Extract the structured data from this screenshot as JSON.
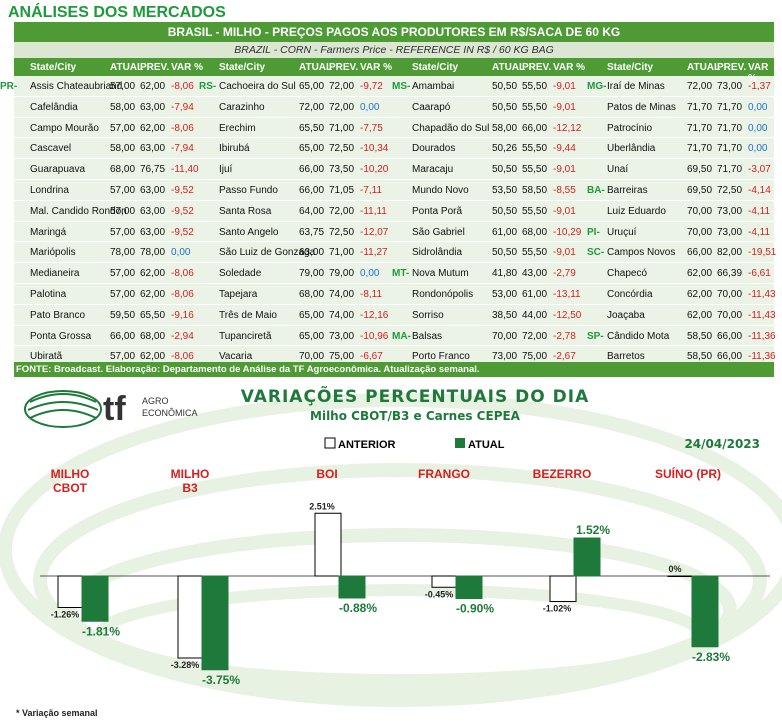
{
  "page_title": "ANÁLISES DOS MERCADOS",
  "table": {
    "title": "BRASIL - MILHO - PREÇOS PAGOS AOS PRODUTORES EM R$/SACA DE 60 KG",
    "subtitle": "BRAZIL - CORN - Farmers Price - REFERENCE IN R$ / 60 KG BAG",
    "headers": [
      "State/City",
      "ATUAL",
      "PREV.",
      "VAR %"
    ],
    "columns": [
      [
        {
          "state": "PR-",
          "city": "Assis Chateaubriand",
          "atual": "57,00",
          "prev": "62,00",
          "var": "-8,06"
        },
        {
          "state": "",
          "city": "Cafelândia",
          "atual": "58,00",
          "prev": "63,00",
          "var": "-7,94"
        },
        {
          "state": "",
          "city": "Campo Mourão",
          "atual": "57,00",
          "prev": "62,00",
          "var": "-8,06"
        },
        {
          "state": "",
          "city": "Cascavel",
          "atual": "58,00",
          "prev": "63,00",
          "var": "-7,94"
        },
        {
          "state": "",
          "city": "Guarapuava",
          "atual": "68,00",
          "prev": "76,75",
          "var": "-11,40"
        },
        {
          "state": "",
          "city": "Londrina",
          "atual": "57,00",
          "prev": "63,00",
          "var": "-9,52"
        },
        {
          "state": "",
          "city": "Mal. Candido Rondon",
          "atual": "57,00",
          "prev": "63,00",
          "var": "-9,52"
        },
        {
          "state": "",
          "city": "Maringá",
          "atual": "57,00",
          "prev": "63,00",
          "var": "-9,52"
        },
        {
          "state": "",
          "city": "Mariópolis",
          "atual": "78,00",
          "prev": "78,00",
          "var": "0,00"
        },
        {
          "state": "",
          "city": "Medianeira",
          "atual": "57,00",
          "prev": "62,00",
          "var": "-8,06"
        },
        {
          "state": "",
          "city": "Palotina",
          "atual": "57,00",
          "prev": "62,00",
          "var": "-8,06"
        },
        {
          "state": "",
          "city": "Pato Branco",
          "atual": "59,50",
          "prev": "65,50",
          "var": "-9,16"
        },
        {
          "state": "",
          "city": "Ponta Grossa",
          "atual": "66,00",
          "prev": "68,00",
          "var": "-2,94"
        },
        {
          "state": "",
          "city": "Ubiratã",
          "atual": "57,00",
          "prev": "62,00",
          "var": "-8,06"
        }
      ],
      [
        {
          "state": "RS-",
          "city": "Cachoeira do Sul",
          "atual": "65,00",
          "prev": "72,00",
          "var": "-9,72"
        },
        {
          "state": "",
          "city": "Carazinho",
          "atual": "72,00",
          "prev": "72,00",
          "var": "0,00"
        },
        {
          "state": "",
          "city": "Erechim",
          "atual": "65,50",
          "prev": "71,00",
          "var": "-7,75"
        },
        {
          "state": "",
          "city": "Ibirubá",
          "atual": "65,00",
          "prev": "72,50",
          "var": "-10,34"
        },
        {
          "state": "",
          "city": "Ijuí",
          "atual": "66,00",
          "prev": "73,50",
          "var": "-10,20"
        },
        {
          "state": "",
          "city": "Passo Fundo",
          "atual": "66,00",
          "prev": "71,05",
          "var": "-7,11"
        },
        {
          "state": "",
          "city": "Santa Rosa",
          "atual": "64,00",
          "prev": "72,00",
          "var": "-11,11"
        },
        {
          "state": "",
          "city": "Santo Angelo",
          "atual": "63,75",
          "prev": "72,50",
          "var": "-12,07"
        },
        {
          "state": "",
          "city": "São Luiz de Gonzaga",
          "atual": "63,00",
          "prev": "71,00",
          "var": "-11,27"
        },
        {
          "state": "",
          "city": "Soledade",
          "atual": "79,00",
          "prev": "79,00",
          "var": "0,00"
        },
        {
          "state": "",
          "city": "Tapejara",
          "atual": "68,00",
          "prev": "74,00",
          "var": "-8,11"
        },
        {
          "state": "",
          "city": "Três de Maio",
          "atual": "65,00",
          "prev": "74,00",
          "var": "-12,16"
        },
        {
          "state": "",
          "city": "Tupanciretã",
          "atual": "65,00",
          "prev": "73,00",
          "var": "-10,96"
        },
        {
          "state": "",
          "city": "Vacaria",
          "atual": "70,00",
          "prev": "75,00",
          "var": "-6,67"
        }
      ],
      [
        {
          "state": "MS-",
          "city": "Amambai",
          "atual": "50,50",
          "prev": "55,50",
          "var": "-9,01"
        },
        {
          "state": "",
          "city": "Caarapó",
          "atual": "50,50",
          "prev": "55,50",
          "var": "-9,01"
        },
        {
          "state": "",
          "city": "Chapadão do Sul",
          "atual": "58,00",
          "prev": "66,00",
          "var": "-12,12"
        },
        {
          "state": "",
          "city": "Dourados",
          "atual": "50,26",
          "prev": "55,50",
          "var": "-9,44"
        },
        {
          "state": "",
          "city": "Maracaju",
          "atual": "50,50",
          "prev": "55,50",
          "var": "-9,01"
        },
        {
          "state": "",
          "city": "Mundo Novo",
          "atual": "53,50",
          "prev": "58,50",
          "var": "-8,55"
        },
        {
          "state": "",
          "city": "Ponta Porã",
          "atual": "50,50",
          "prev": "55,50",
          "var": "-9,01"
        },
        {
          "state": "",
          "city": "São Gabriel",
          "atual": "61,00",
          "prev": "68,00",
          "var": "-10,29"
        },
        {
          "state": "",
          "city": "Sidrolândia",
          "atual": "50,50",
          "prev": "55,50",
          "var": "-9,01"
        },
        {
          "state": "MT-",
          "city": "Nova Mutum",
          "atual": "41,80",
          "prev": "43,00",
          "var": "-2,79"
        },
        {
          "state": "",
          "city": "Rondonópolis",
          "atual": "53,00",
          "prev": "61,00",
          "var": "-13,11"
        },
        {
          "state": "",
          "city": "Sorriso",
          "atual": "38,50",
          "prev": "44,00",
          "var": "-12,50"
        },
        {
          "state": "MA-",
          "city": "Balsas",
          "atual": "70,00",
          "prev": "72,00",
          "var": "-2,78"
        },
        {
          "state": "",
          "city": "Porto Franco",
          "atual": "73,00",
          "prev": "75,00",
          "var": "-2,67"
        }
      ],
      [
        {
          "state": "MG-",
          "city": "Iraí de Minas",
          "atual": "72,00",
          "prev": "73,00",
          "var": "-1,37"
        },
        {
          "state": "",
          "city": "Patos de Minas",
          "atual": "71,70",
          "prev": "71,70",
          "var": "0,00"
        },
        {
          "state": "",
          "city": "Patrocínio",
          "atual": "71,70",
          "prev": "71,70",
          "var": "0,00"
        },
        {
          "state": "",
          "city": "Uberlândia",
          "atual": "71,70",
          "prev": "71,70",
          "var": "0,00"
        },
        {
          "state": "",
          "city": "Unaí",
          "atual": "69,50",
          "prev": "71,70",
          "var": "-3,07"
        },
        {
          "state": "BA-",
          "city": "Barreiras",
          "atual": "69,50",
          "prev": "72,50",
          "var": "-4,14"
        },
        {
          "state": "",
          "city": "Luiz Eduardo",
          "atual": "70,00",
          "prev": "73,00",
          "var": "-4,11"
        },
        {
          "state": "PI-",
          "city": "Uruçuí",
          "atual": "70,00",
          "prev": "73,00",
          "var": "-4,11"
        },
        {
          "state": "SC-",
          "city": "Campos Novos",
          "atual": "66,00",
          "prev": "82,00",
          "var": "-19,51"
        },
        {
          "state": "",
          "city": "Chapecó",
          "atual": "62,00",
          "prev": "66,39",
          "var": "-6,61"
        },
        {
          "state": "",
          "city": "Concórdia",
          "atual": "62,00",
          "prev": "70,00",
          "var": "-11,43"
        },
        {
          "state": "",
          "city": "Joaçaba",
          "atual": "62,00",
          "prev": "70,00",
          "var": "-11,43"
        },
        {
          "state": "SP-",
          "city": "Cândido Mota",
          "atual": "58,50",
          "prev": "66,00",
          "var": "-11,36"
        },
        {
          "state": "",
          "city": "Barretos",
          "atual": "58,50",
          "prev": "66,00",
          "var": "-11,36"
        }
      ]
    ],
    "source": "FONTE: Broadcast. Elaboração: Departamento de Análise da TF Agroeconômica. Atualização semanal."
  },
  "brand": {
    "logo_text": "tf",
    "logo_sub1": "AGRO",
    "logo_sub2": "ECONÔMICA"
  },
  "chart_data": {
    "type": "bar",
    "title": "VARIAÇÕES PERCENTUAIS DO DIA",
    "subtitle": "Milho CBOT/B3 e Carnes CEPEA",
    "date": "24/04/2023",
    "categories": [
      "MILHO CBOT",
      "MILHO B3",
      "BOI",
      "FRANGO",
      "BEZERRO",
      "SUÍNO (PR)"
    ],
    "category_lines": [
      [
        "MILHO",
        "CBOT"
      ],
      [
        "MILHO",
        "B3"
      ],
      [
        "BOI"
      ],
      [
        "FRANGO"
      ],
      [
        "BEZERRO"
      ],
      [
        "SUÍNO (PR)"
      ]
    ],
    "series": [
      {
        "name": "ANTERIOR",
        "values": [
          -1.26,
          -3.28,
          2.51,
          -0.45,
          -1.02,
          0
        ],
        "labels": [
          "-1.26%",
          "-3.28%",
          "2.51%",
          "-0.45%",
          "-1.02%",
          "0%"
        ]
      },
      {
        "name": "ATUAL",
        "values": [
          -1.81,
          -3.75,
          -0.88,
          -0.9,
          1.52,
          -2.83
        ],
        "labels": [
          "-1.81%",
          "-3.75%",
          "-0.88%",
          "-0.90%",
          "1.52%",
          "-2.83%"
        ]
      }
    ],
    "grid": false,
    "legend": "top-center"
  },
  "footnote": "* Variação semanal",
  "colors": {
    "green": "#4e9a35",
    "dark_green": "#1e7a3a",
    "red": "#d61f1f",
    "blue": "#1f6fd6"
  }
}
